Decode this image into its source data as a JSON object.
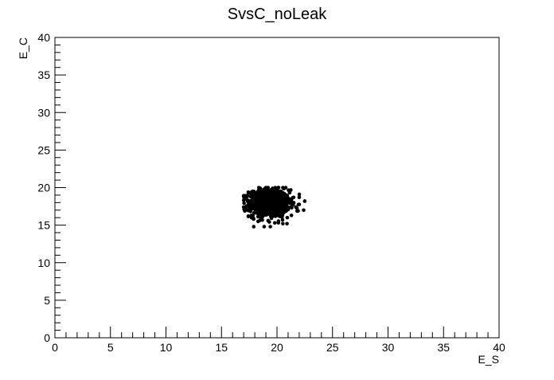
{
  "chart_data": {
    "type": "scatter",
    "title": "SvsC_noLeak",
    "xlabel": "E_S",
    "ylabel": "E_C",
    "xlim": [
      0,
      40
    ],
    "ylim": [
      0,
      40
    ],
    "xticks": [
      0,
      5,
      10,
      15,
      20,
      25,
      30,
      35,
      40
    ],
    "yticks": [
      0,
      5,
      10,
      15,
      20,
      25,
      30,
      35,
      40
    ],
    "grid": false,
    "legend": "none",
    "marker_color": "#000000",
    "cluster": {
      "center": [
        19.3,
        17.9
      ],
      "spread": [
        0.9,
        0.9
      ],
      "count": 900
    },
    "points": [
      [
        17.1,
        16.9
      ],
      [
        17.0,
        17.4
      ],
      [
        17.5,
        17.8
      ],
      [
        17.3,
        18.8
      ],
      [
        17.8,
        19.3
      ],
      [
        18.5,
        19.9
      ],
      [
        19.0,
        20.0
      ],
      [
        19.6,
        19.9
      ],
      [
        20.2,
        19.3
      ],
      [
        20.6,
        19.0
      ],
      [
        21.0,
        18.6
      ],
      [
        21.5,
        18.7
      ],
      [
        22.0,
        18.7
      ],
      [
        22.5,
        18.2
      ],
      [
        22.4,
        17.0
      ],
      [
        21.9,
        16.9
      ],
      [
        21.3,
        16.3
      ],
      [
        20.5,
        15.7
      ],
      [
        19.8,
        15.3
      ],
      [
        19.2,
        15.6
      ],
      [
        18.6,
        16.0
      ],
      [
        18.3,
        15.5
      ],
      [
        19.4,
        14.8
      ],
      [
        20.9,
        15.2
      ],
      [
        17.7,
        16.3
      ],
      [
        21.7,
        17.4
      ],
      [
        20.0,
        19.8
      ]
    ]
  }
}
